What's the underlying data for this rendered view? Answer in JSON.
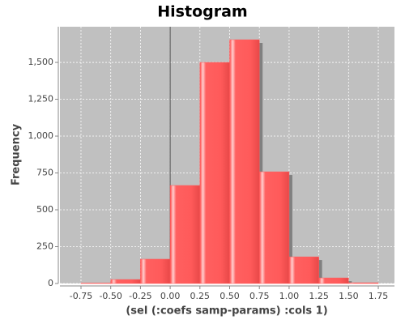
{
  "chart_data": {
    "type": "histogram",
    "title": "Histogram",
    "x_label": "(sel (:coefs samp-params) :cols 1)",
    "y_label": "Frequency",
    "bins": [
      -0.75,
      -0.5,
      -0.25,
      0,
      0.25,
      0.5,
      0.75,
      1.0,
      1.25,
      1.5,
      1.75
    ],
    "values": [
      3,
      27,
      165,
      665,
      1500,
      1654,
      758,
      181,
      38,
      5
    ],
    "color": "#ff5a5a",
    "xlim": [
      -0.927,
      1.886
    ],
    "ylim": [
      0,
      1742
    ],
    "xticks": [
      -0.75,
      {
        "value": -0.5,
        "label": "-0.50"
      },
      -0.25,
      {
        "value": 0,
        "label": "0.00"
      },
      0.25,
      {
        "value": 0.5,
        "label": "0.50"
      },
      0.75,
      {
        "value": 1.0,
        "label": "1.00"
      },
      1.25,
      {
        "value": 1.5,
        "label": "1.50"
      },
      1.75
    ],
    "yticks": [
      0,
      250,
      500,
      750,
      {
        "value": 1000,
        "label": "1,000"
      },
      {
        "value": 1250,
        "label": "1,250"
      },
      {
        "value": 1500,
        "label": "1,500"
      }
    ],
    "grid": true
  }
}
